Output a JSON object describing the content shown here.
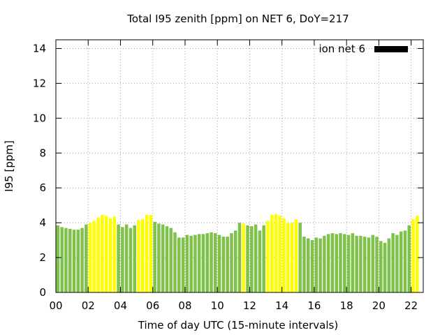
{
  "chart_data": {
    "type": "bar",
    "title": "Total I95 zenith [ppm] on NET 6, DoY=217",
    "xlabel": "Time of day UTC (15-minute intervals)",
    "ylabel": "I95 [ppm]",
    "ylim": [
      0,
      14.5
    ],
    "xlim": [
      0,
      22.75
    ],
    "yticks": [
      "0",
      "2",
      "4",
      "6",
      "8",
      "10",
      "12",
      "14"
    ],
    "xticks": [
      "00",
      "02",
      "04",
      "06",
      "08",
      "10",
      "12",
      "14",
      "16",
      "18",
      "20",
      "22"
    ],
    "grid": true,
    "legend": {
      "label": "ion net 6",
      "color": "#000000",
      "position": "top-right"
    },
    "bar_interval_hours": 0.25,
    "colors": {
      "normal": "#7fc24a",
      "high": "#ffff00"
    },
    "series": [
      {
        "values": [
          3.85,
          3.75,
          3.7,
          3.65,
          3.6,
          3.6,
          3.7,
          3.9,
          4.0,
          4.1,
          4.3,
          4.45,
          4.4,
          4.25,
          4.35,
          3.9,
          3.75,
          3.9,
          3.7,
          3.85,
          4.15,
          4.2,
          4.45,
          4.45,
          4.05,
          3.95,
          3.9,
          3.8,
          3.7,
          3.45,
          3.15,
          3.15,
          3.3,
          3.25,
          3.3,
          3.35,
          3.35,
          3.4,
          3.45,
          3.4,
          3.3,
          3.2,
          3.2,
          3.4,
          3.55,
          4.0,
          3.95,
          3.85,
          3.8,
          3.9,
          3.55,
          3.85,
          4.1,
          4.45,
          4.5,
          4.4,
          4.25,
          4.0,
          4.0,
          4.2,
          4.0,
          3.2,
          3.1,
          3.0,
          3.15,
          3.1,
          3.25,
          3.35,
          3.4,
          3.35,
          3.4,
          3.35,
          3.3,
          3.4,
          3.25,
          3.25,
          3.2,
          3.15,
          3.3,
          3.2,
          2.95,
          2.85,
          3.1,
          3.4,
          3.3,
          3.5,
          3.55,
          3.85,
          4.2,
          4.4
        ],
        "level": [
          "n",
          "n",
          "n",
          "n",
          "n",
          "n",
          "n",
          "n",
          "h",
          "h",
          "h",
          "h",
          "h",
          "h",
          "h",
          "n",
          "n",
          "n",
          "n",
          "n",
          "h",
          "h",
          "h",
          "h",
          "n",
          "n",
          "n",
          "n",
          "n",
          "n",
          "n",
          "n",
          "n",
          "n",
          "n",
          "n",
          "n",
          "n",
          "n",
          "n",
          "n",
          "n",
          "n",
          "n",
          "n",
          "n",
          "h",
          "n",
          "n",
          "n",
          "n",
          "n",
          "h",
          "h",
          "h",
          "h",
          "h",
          "h",
          "h",
          "h",
          "n",
          "n",
          "n",
          "n",
          "n",
          "n",
          "n",
          "n",
          "n",
          "n",
          "n",
          "n",
          "n",
          "n",
          "n",
          "n",
          "n",
          "n",
          "n",
          "n",
          "n",
          "n",
          "n",
          "n",
          "n",
          "n",
          "n",
          "n",
          "h",
          "h"
        ]
      }
    ]
  }
}
